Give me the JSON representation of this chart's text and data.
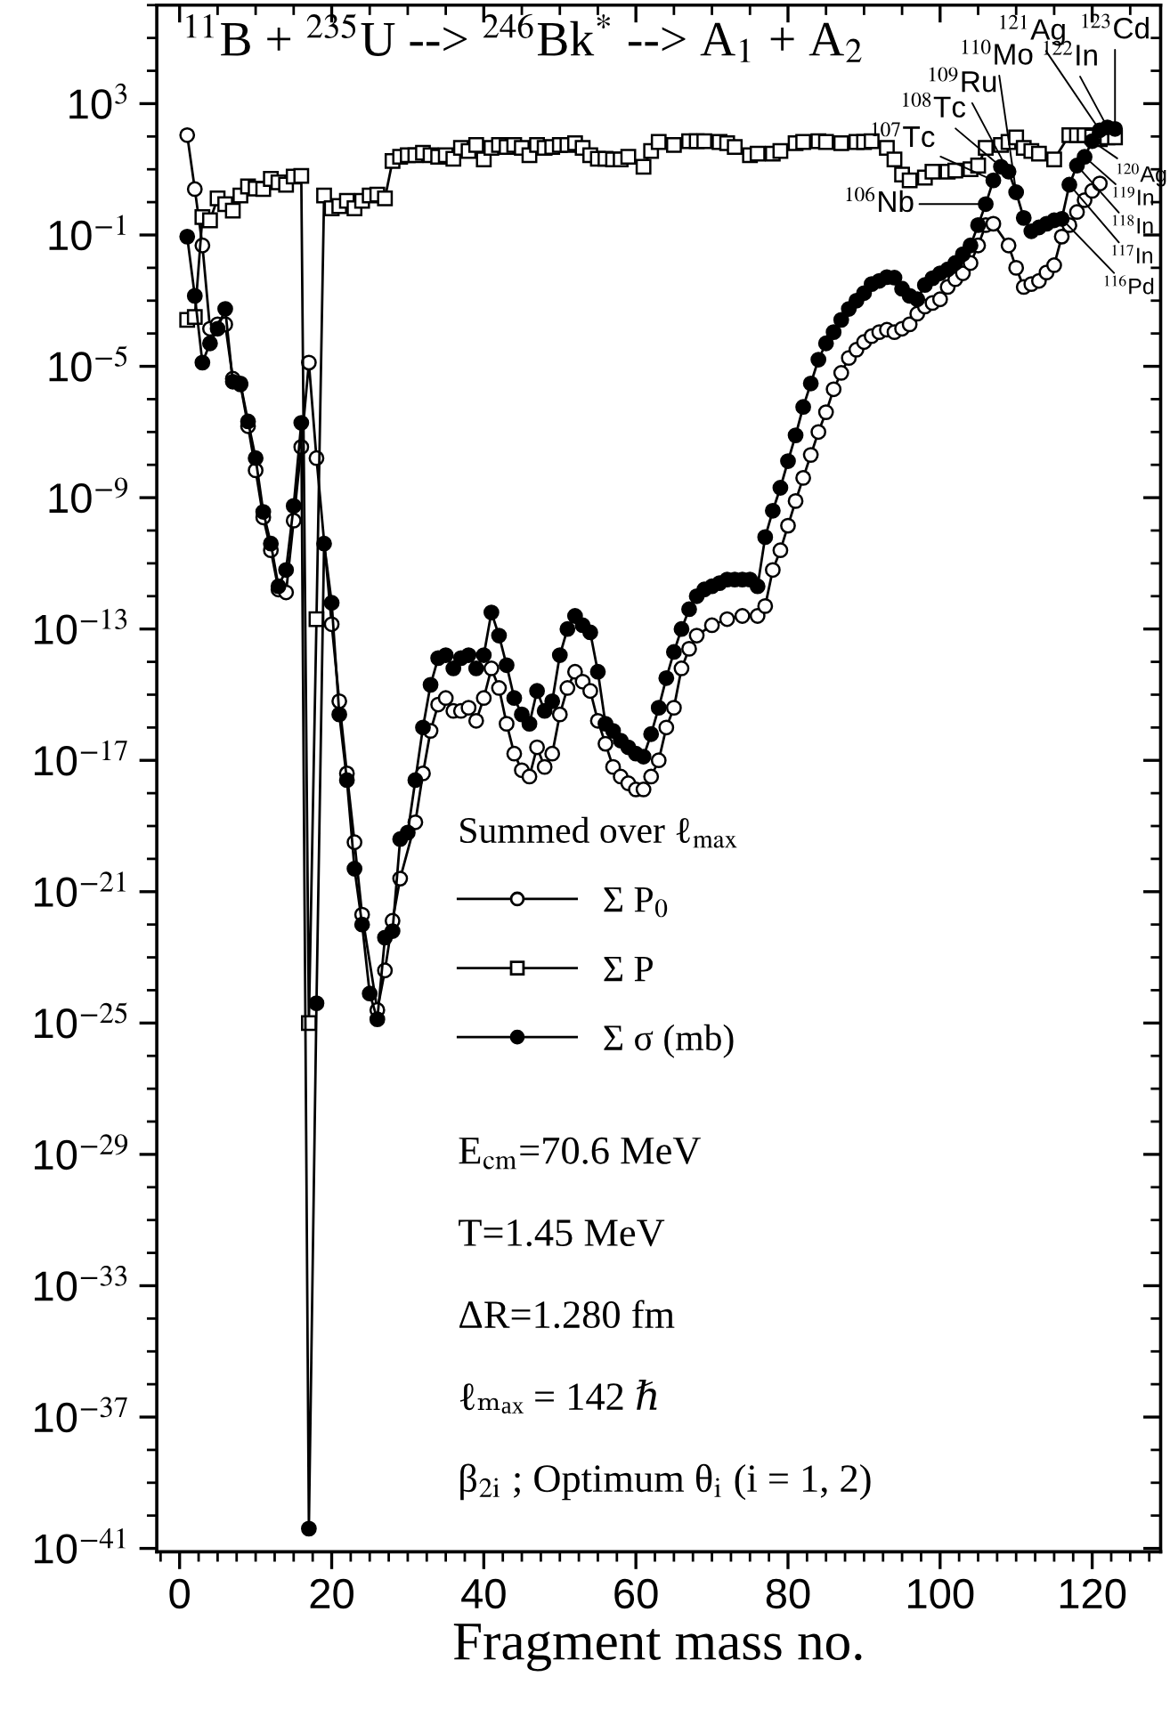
{
  "chart_data": {
    "type": "line",
    "title": "$^{11}$B + $^{235}$U --> $^{246}$Bk$^{*}$ --> A$_{1}$ + A$_{2}$",
    "xlabel": "Fragment mass no.",
    "legend_title": "Summed over ℓ$_{max}$",
    "legend": "bottom left",
    "log": "y",
    "xlim": [
      -3,
      129
    ],
    "xticks": [
      0,
      20,
      40,
      60,
      80,
      100,
      120
    ],
    "ylim": [
      7.9e-42,
      1000000.0
    ],
    "yticks": [
      {
        "value": 1000.0,
        "label": "10$^{3}$"
      },
      {
        "value": 0.1,
        "label": "10$^{−1}$"
      },
      {
        "value": 1e-05,
        "label": "10$^{−5}$"
      },
      {
        "value": 1e-09,
        "label": "10$^{−9}$"
      },
      {
        "value": 1e-13,
        "label": "10$^{−13}$"
      },
      {
        "value": 1e-17,
        "label": "10$^{−17}$"
      },
      {
        "value": 1e-21,
        "label": "10$^{−21}$"
      },
      {
        "value": 1e-25,
        "label": "10$^{−25}$"
      },
      {
        "value": 1e-29,
        "label": "10$^{−29}$"
      },
      {
        "value": 1e-33,
        "label": "10$^{−33}$"
      },
      {
        "value": 1e-37,
        "label": "10$^{−37}$"
      },
      {
        "value": 1e-41,
        "label": "10$^{−41}$"
      }
    ],
    "series": [
      {
        "name": "Σ P$_{0}$",
        "color": "#ffffff",
        "marker": "circle",
        "x": [
          1,
          2,
          3,
          4,
          5,
          6,
          7,
          8,
          9,
          10,
          11,
          12,
          13,
          14,
          15,
          16,
          17,
          18,
          20,
          21,
          22,
          23,
          24,
          26,
          27,
          28,
          29,
          31,
          32,
          33,
          34,
          35,
          36,
          37,
          38,
          39,
          40,
          41,
          42,
          43,
          44,
          45,
          46,
          47,
          48,
          49,
          50,
          51,
          52,
          53,
          54,
          55,
          56,
          57,
          58,
          59,
          60,
          61,
          62,
          63,
          64,
          65,
          66,
          67,
          68,
          70,
          72,
          74,
          76,
          77,
          78,
          79,
          80,
          81,
          82,
          83,
          84,
          85,
          86,
          87,
          88,
          89,
          90,
          91,
          92,
          93,
          94,
          95,
          96,
          97,
          98,
          99,
          100,
          101,
          102,
          103,
          104,
          105,
          106,
          107,
          109,
          110,
          111,
          112,
          113,
          114,
          115,
          116,
          117,
          118,
          119,
          120,
          121
        ],
        "values": [
          110,
          2.5,
          0.048,
          0.00014,
          0.00019,
          0.00019,
          4.2e-06,
          2.8e-06,
          1.5e-07,
          6.8e-09,
          2.5e-10,
          2.5e-11,
          1.6e-12,
          1.3e-12,
          2e-10,
          3.5e-08,
          1.3e-05,
          1.6e-08,
          1.4e-13,
          6.3e-16,
          4e-18,
          3.2e-20,
          2e-22,
          2.5e-25,
          4e-24,
          1.3e-22,
          2.5e-21,
          1.3e-19,
          4e-18,
          7.9e-17,
          5e-16,
          7.9e-16,
          3.2e-16,
          3.2e-16,
          4e-16,
          1.6e-16,
          7.9e-16,
          6.3e-15,
          1.6e-15,
          1.3e-16,
          1.6e-17,
          5e-18,
          3.2e-18,
          2.5e-17,
          6.3e-18,
          1.6e-17,
          2.5e-16,
          1.6e-15,
          5e-15,
          2.5e-15,
          1.3e-15,
          1.6e-16,
          3.2e-17,
          6.3e-18,
          3.2e-18,
          2e-18,
          1.3e-18,
          1.3e-18,
          3.2e-18,
          1e-17,
          1e-16,
          4e-16,
          6.3e-15,
          2.5e-14,
          6.3e-14,
          1.3e-13,
          2e-13,
          2.5e-13,
          2.5e-13,
          5e-13,
          6.3e-12,
          2.5e-11,
          1.4e-10,
          7.9e-10,
          4e-09,
          2e-08,
          1e-07,
          4e-07,
          2e-06,
          6.3e-06,
          1.8e-05,
          3.2e-05,
          5.5e-05,
          8.3e-05,
          0.00011,
          0.00013,
          0.00011,
          0.00014,
          0.00019,
          0.0004,
          0.00066,
          0.00085,
          0.0011,
          0.0026,
          0.0045,
          0.0068,
          0.014,
          0.048,
          0.2,
          0.22,
          0.048,
          0.01,
          0.0026,
          0.0032,
          0.004,
          0.0072,
          0.012,
          0.089,
          0.2,
          0.5,
          1.15,
          2.2,
          3.7
        ]
      },
      {
        "name": "Σ P",
        "color": "#ffffff",
        "marker": "square",
        "x": [
          1,
          2,
          3,
          4,
          5,
          6,
          7,
          8,
          9,
          10,
          11,
          12,
          13,
          14,
          15,
          16,
          17,
          18,
          19,
          20,
          21,
          22,
          23,
          24,
          25,
          26,
          27,
          28,
          29,
          30,
          31,
          32,
          33,
          34,
          35,
          36,
          37,
          38,
          39,
          40,
          41,
          42,
          43,
          44,
          45,
          46,
          47,
          48,
          49,
          50,
          51,
          52,
          53,
          54,
          55,
          56,
          57,
          58,
          59,
          61,
          62,
          63,
          65,
          67,
          68,
          69,
          71,
          72,
          73,
          75,
          76,
          78,
          79,
          81,
          82,
          84,
          85,
          87,
          89,
          90,
          91,
          93,
          94,
          95,
          96,
          98,
          99,
          101,
          102,
          104,
          105,
          106,
          108,
          109,
          110,
          111,
          112,
          113,
          115,
          117,
          118,
          119,
          120,
          121,
          122,
          123
        ],
        "values": [
          0.00026,
          0.00032,
          0.35,
          0.28,
          1.3,
          0.87,
          0.55,
          1.6,
          3.0,
          2.6,
          2.5,
          5.1,
          4.0,
          3.4,
          6.0,
          6.3,
          1e-25,
          2e-13,
          1.6,
          0.65,
          0.76,
          1.1,
          0.65,
          1.1,
          1.6,
          1.7,
          1.3,
          18,
          24,
          27,
          27,
          32,
          27,
          24,
          27,
          21,
          45,
          36,
          55,
          20,
          45,
          55,
          48,
          55,
          45,
          27,
          55,
          45,
          48,
          55,
          55,
          62,
          45,
          27,
          21,
          21,
          20,
          20,
          24,
          12,
          36,
          68,
          55,
          72,
          72,
          72,
          68,
          62,
          48,
          27,
          30,
          30,
          36,
          62,
          68,
          72,
          68,
          62,
          68,
          68,
          72,
          45,
          20,
          6.9,
          4.6,
          5.6,
          8.5,
          8.5,
          9.1,
          10,
          13,
          45,
          55,
          68,
          93,
          45,
          36,
          30,
          20,
          110,
          110,
          110,
          100,
          83,
          93,
          93
        ]
      },
      {
        "name": "Σ σ (mb)",
        "color": "#000000",
        "marker": "circle",
        "x": [
          1,
          2,
          3,
          4,
          5,
          6,
          7,
          8,
          9,
          10,
          11,
          12,
          13,
          14,
          15,
          16,
          17,
          18,
          19,
          20,
          21,
          22,
          23,
          24,
          25,
          26,
          27,
          28,
          29,
          30,
          31,
          32,
          33,
          34,
          35,
          36,
          37,
          38,
          39,
          40,
          41,
          42,
          43,
          44,
          45,
          46,
          47,
          48,
          49,
          50,
          51,
          52,
          53,
          54,
          55,
          56,
          57,
          58,
          59,
          60,
          61,
          62,
          63,
          64,
          65,
          66,
          67,
          68,
          69,
          70,
          71,
          72,
          73,
          74,
          75,
          76,
          77,
          78,
          79,
          80,
          81,
          82,
          83,
          84,
          85,
          86,
          87,
          88,
          89,
          90,
          91,
          92,
          93,
          94,
          95,
          96,
          97,
          98,
          99,
          100,
          101,
          102,
          103,
          104,
          105,
          106,
          107,
          108,
          109,
          110,
          111,
          112,
          113,
          114,
          115,
          116,
          117,
          118,
          119,
          120,
          121,
          122,
          123
        ],
        "values": [
          0.089,
          0.0014,
          1.3e-05,
          5e-05,
          0.00014,
          0.00056,
          3.4e-06,
          3e-06,
          2.1e-07,
          1.6e-08,
          3.7e-10,
          4e-11,
          2e-12,
          6.3e-12,
          5.6e-10,
          1.9e-07,
          4e-41,
          4e-25,
          4e-11,
          6.3e-13,
          2.5e-16,
          2.5e-18,
          5e-21,
          1e-22,
          7.9e-25,
          1.3e-25,
          4e-23,
          6.3e-23,
          4e-20,
          6.3e-20,
          2.5e-18,
          1e-16,
          2e-15,
          1.3e-14,
          1.6e-14,
          6.3e-15,
          1.3e-14,
          1.6e-14,
          6.3e-15,
          1.6e-14,
          3.2e-13,
          6.3e-14,
          7.9e-15,
          7.9e-16,
          2.5e-16,
          1.3e-16,
          1.3e-15,
          3.2e-16,
          6.3e-16,
          1.6e-14,
          1e-13,
          2.5e-13,
          1.3e-13,
          7.9e-14,
          5e-15,
          1.3e-16,
          7.9e-17,
          4e-17,
          2.5e-17,
          1.6e-17,
          1.3e-17,
          6.3e-17,
          4e-16,
          3.2e-15,
          2e-14,
          1e-13,
          4e-13,
          1e-12,
          1.6e-12,
          2e-12,
          2.5e-12,
          3.2e-12,
          3.2e-12,
          3.2e-12,
          3.2e-12,
          2e-12,
          6.3e-11,
          4e-10,
          2e-09,
          1.3e-08,
          7.9e-08,
          5.8e-07,
          3e-06,
          1.6e-05,
          5e-05,
          0.00011,
          0.00026,
          0.00056,
          0.001,
          0.0017,
          0.0032,
          0.004,
          0.0052,
          0.005,
          0.0023,
          0.0014,
          0.0011,
          0.003,
          0.0048,
          0.0068,
          0.0089,
          0.014,
          0.026,
          0.048,
          0.2,
          0.87,
          4.6,
          12,
          8.5,
          2,
          0.33,
          0.13,
          0.17,
          0.22,
          0.28,
          0.31,
          3.4,
          13,
          24,
          72,
          155,
          190,
          170
        ]
      }
    ],
    "annotations": [
      "E$_{cm}$=70.6 MeV",
      "T=1.45 MeV",
      "ΔR=1.280 fm",
      "ℓₘₐₓ = 142 ℏ",
      "β$_{2i}$ ; Optimum θ$_{i}$ (i = 1, 2)",
      {
        "text": "$^{106}$Nb",
        "x": 106,
        "y": 0.87
      },
      {
        "text": "$^{107}$Tc",
        "x": 107,
        "y": 4.6
      },
      {
        "text": "$^{108}$Tc",
        "x": 108,
        "y": 12
      },
      {
        "text": "$^{109}$Ru",
        "x": 109,
        "y": 8.5
      },
      {
        "text": "$^{110}$Mo",
        "x": 110,
        "y": 2
      },
      {
        "text": "$^{121}$Ag",
        "x": 121,
        "y": 155
      },
      {
        "text": "$^{122}$In",
        "x": 122,
        "y": 190
      },
      {
        "text": "$^{123}$Cd",
        "x": 123,
        "y": 170
      },
      {
        "text": "$^{120}$Ag",
        "x": 120,
        "y": 72
      },
      {
        "text": "$^{119}$In",
        "x": 119,
        "y": 24
      },
      {
        "text": "$^{118}$In",
        "x": 118,
        "y": 13
      },
      {
        "text": "$^{117}$In",
        "x": 117,
        "y": 3.4
      },
      {
        "text": "$^{116}$Pd",
        "x": 116,
        "y": 0.31
      }
    ]
  }
}
